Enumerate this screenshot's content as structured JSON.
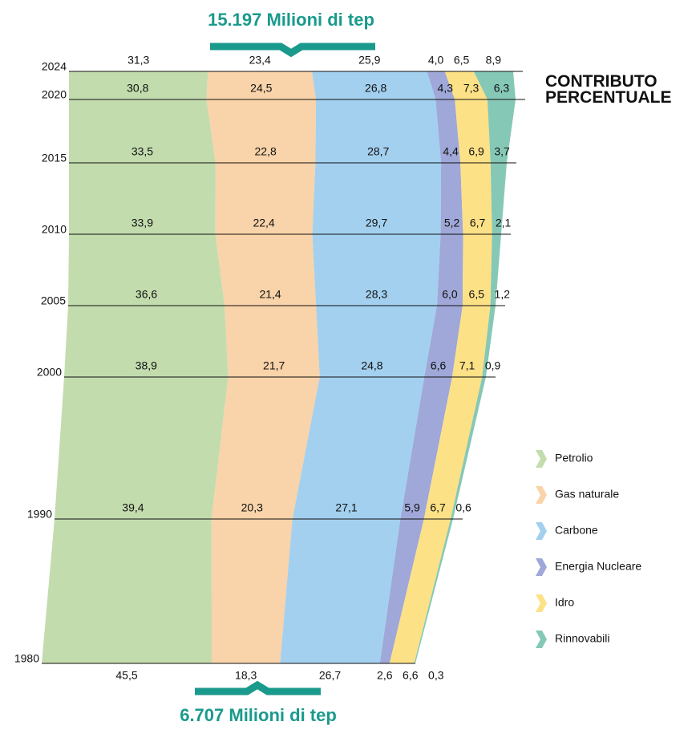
{
  "chart_data": {
    "type": "stacked_area",
    "title": "CONTRIBUTO PERCENTUALE",
    "top_label": "15.197 Milioni di tep",
    "bottom_label": "6.707 Milioni di tep",
    "x": [
      1980,
      1990,
      2000,
      2005,
      2010,
      2015,
      2020,
      2024
    ],
    "series": [
      {
        "name": "Petrolio",
        "color": "#c3dcae",
        "values": [
          45.5,
          39.4,
          38.9,
          36.6,
          33.9,
          33.5,
          30.8,
          31.3
        ],
        "value_labels": [
          "45,5",
          "39,4",
          "38,9",
          "36,6",
          "33,9",
          "33,5",
          "30,8",
          "31,3"
        ]
      },
      {
        "name": "Gas naturale",
        "color": "#f9d3a9",
        "values": [
          18.3,
          20.3,
          21.7,
          21.4,
          22.4,
          22.8,
          24.5,
          23.4
        ],
        "value_labels": [
          "18,3",
          "20,3",
          "21,7",
          "21,4",
          "22,4",
          "22,8",
          "24,5",
          "23,4"
        ]
      },
      {
        "name": "Carbone",
        "color": "#a3d0ef",
        "values": [
          26.7,
          27.1,
          24.8,
          28.3,
          29.7,
          28.7,
          26.8,
          25.9
        ],
        "value_labels": [
          "26,7",
          "27,1",
          "24,8",
          "28,3",
          "29,7",
          "28,7",
          "26,8",
          "25,9"
        ]
      },
      {
        "name": "Energia Nucleare",
        "color": "#9fa8d8",
        "values": [
          2.6,
          5.9,
          6.6,
          6.0,
          5.2,
          4.4,
          4.3,
          4.0
        ],
        "value_labels": [
          "2,6",
          "5,9",
          "6,6",
          "6,0",
          "5,2",
          "4,4",
          "4,3",
          "4,0"
        ]
      },
      {
        "name": "Idro",
        "color": "#fde186",
        "values": [
          6.6,
          6.7,
          7.1,
          6.5,
          6.7,
          6.9,
          7.3,
          6.5
        ],
        "value_labels": [
          "6,6",
          "6,7",
          "7,1",
          "6,5",
          "6,7",
          "6,9",
          "7,3",
          "6,5"
        ]
      },
      {
        "name": "Rinnovabili",
        "color": "#86c8b6",
        "values": [
          0.3,
          0.6,
          0.9,
          1.2,
          2.1,
          3.7,
          6.3,
          8.9
        ],
        "value_labels": [
          "0,3",
          "0,6",
          "0,9",
          "1,2",
          "2,1",
          "3,7",
          "6,3",
          "8,9"
        ]
      }
    ],
    "accent_color": "#1a9a8c"
  }
}
